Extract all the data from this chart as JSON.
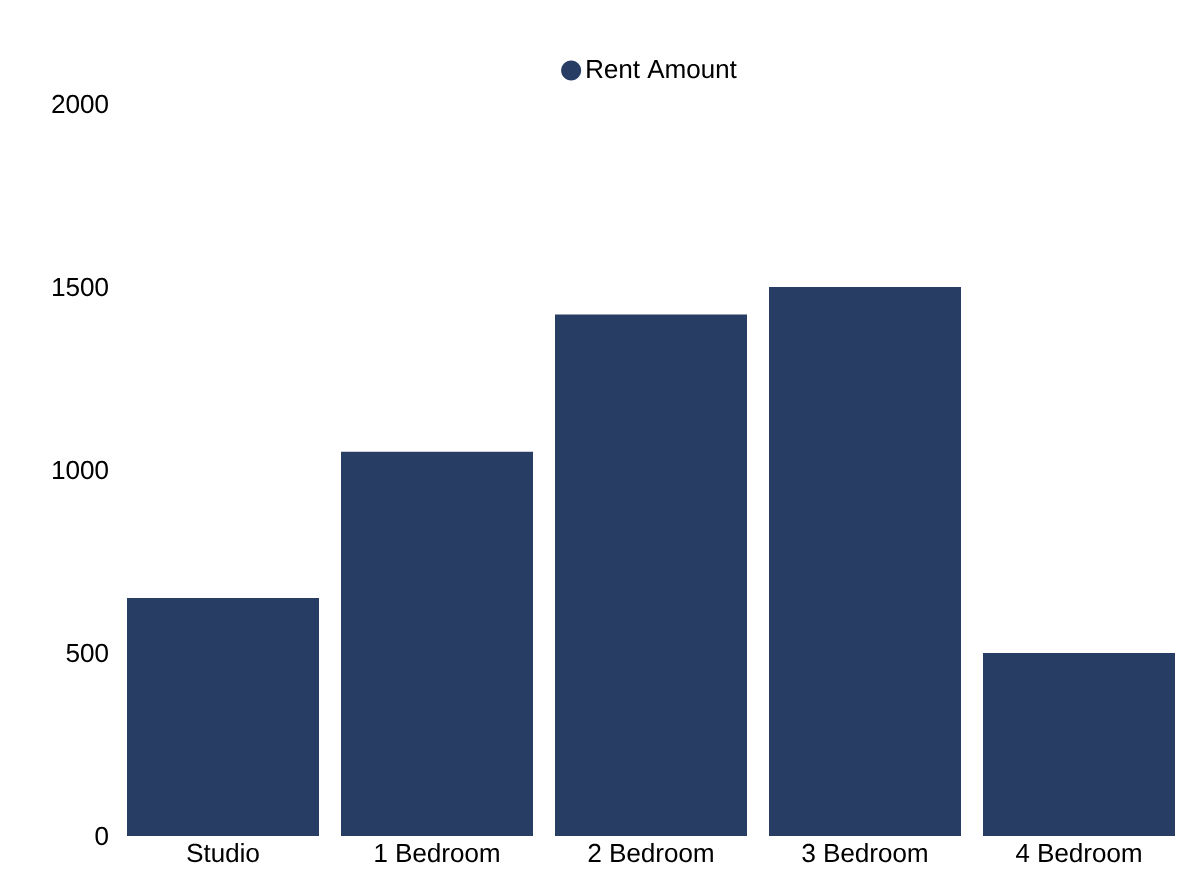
{
  "chart_data": {
    "type": "bar",
    "categories": [
      "Studio",
      "1 Bedroom",
      "2 Bedroom",
      "3 Bedroom",
      "4 Bedroom"
    ],
    "series": [
      {
        "name": "Rent Amount",
        "color": "#283d63",
        "values": [
          650,
          1050,
          1425,
          1500,
          500
        ]
      }
    ],
    "ylim": [
      0,
      2000
    ],
    "yticks": [
      0,
      500,
      1000,
      1500,
      2000
    ],
    "grid": false,
    "legend": "top"
  }
}
